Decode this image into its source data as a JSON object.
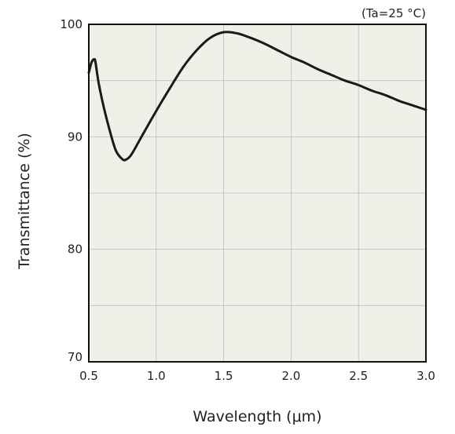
{
  "chart_data": {
    "type": "line",
    "title": "",
    "annotation": "(Ta=25 °C)",
    "xlabel": "Wavelength (μm)",
    "ylabel": "Transmittance (%)",
    "xlim": [
      0.5,
      3.0
    ],
    "ylim": [
      70,
      100
    ],
    "xticks": [
      0.5,
      1.0,
      1.5,
      2.0,
      2.5,
      3.0
    ],
    "xtick_labels": [
      "0.5",
      "1.0",
      "1.5",
      "2.0",
      "2.5",
      "3.0"
    ],
    "yticks": [
      70,
      80,
      90,
      100
    ],
    "ytick_labels": [
      "70",
      "80",
      "90",
      "100"
    ],
    "grid": true,
    "colors": {
      "background": "#f1f0e8",
      "line": "#1a1a1a",
      "grid": "#bdbdbd"
    },
    "series": [
      {
        "values": [
          [
            0.5,
            95.7
          ],
          [
            0.52,
            96.6
          ],
          [
            0.54,
            96.9
          ],
          [
            0.55,
            96.6
          ],
          [
            0.57,
            95.0
          ],
          [
            0.6,
            93.2
          ],
          [
            0.65,
            90.8
          ],
          [
            0.7,
            88.8
          ],
          [
            0.75,
            88.0
          ],
          [
            0.78,
            88.0
          ],
          [
            0.82,
            88.5
          ],
          [
            0.9,
            90.2
          ],
          [
            1.0,
            92.3
          ],
          [
            1.1,
            94.3
          ],
          [
            1.2,
            96.2
          ],
          [
            1.3,
            97.7
          ],
          [
            1.4,
            98.8
          ],
          [
            1.5,
            99.3
          ],
          [
            1.6,
            99.2
          ],
          [
            1.7,
            98.8
          ],
          [
            1.8,
            98.3
          ],
          [
            1.9,
            97.7
          ],
          [
            2.0,
            97.1
          ],
          [
            2.1,
            96.6
          ],
          [
            2.2,
            96.0
          ],
          [
            2.3,
            95.5
          ],
          [
            2.4,
            95.0
          ],
          [
            2.5,
            94.6
          ],
          [
            2.6,
            94.1
          ],
          [
            2.7,
            93.7
          ],
          [
            2.8,
            93.2
          ],
          [
            2.9,
            92.8
          ],
          [
            3.0,
            92.4
          ]
        ]
      }
    ]
  }
}
